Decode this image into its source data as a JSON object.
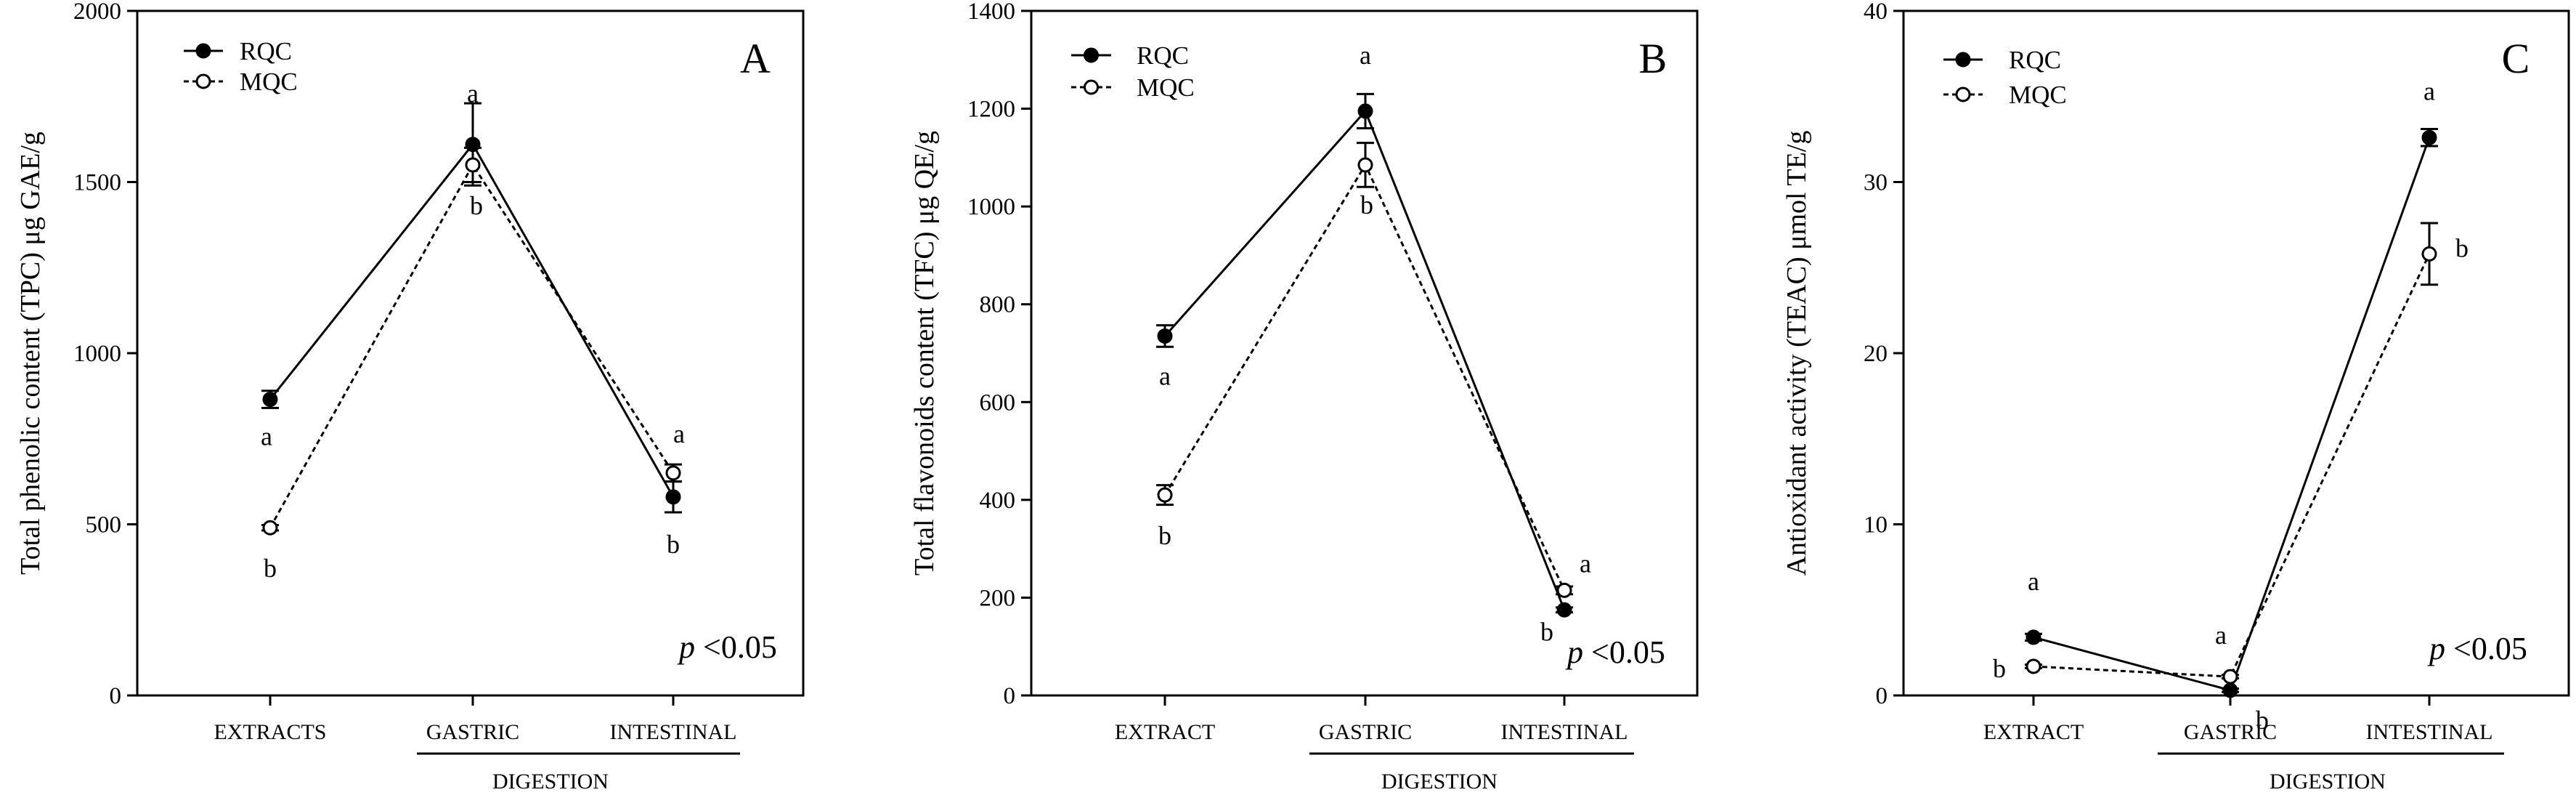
{
  "chart_data": [
    {
      "type": "line",
      "panel_label": "A",
      "ylabel": "Total phenolic content (TPC) μg GAE/g",
      "xlabel": "DIGESTION",
      "ylim": [
        0,
        2000
      ],
      "yticks": [
        0,
        500,
        1000,
        1500,
        2000
      ],
      "categories": [
        "EXTRACTS",
        "GASTRIC",
        "INTESTINAL"
      ],
      "annotation": {
        "italic": "p",
        "text": " <0.05"
      },
      "series": [
        {
          "name": "RQC",
          "marker": "filled",
          "values": [
            865,
            1610,
            580
          ],
          "errors": [
            25,
            120,
            45
          ],
          "letters": [
            "a",
            "a",
            "b"
          ]
        },
        {
          "name": "MQC",
          "marker": "open",
          "values": [
            490,
            1550,
            650
          ],
          "errors": [
            8,
            50,
            25
          ],
          "letters": [
            "b",
            "b",
            "a"
          ]
        }
      ]
    },
    {
      "type": "line",
      "panel_label": "B",
      "ylabel": "Total flavonoids content (TFC) μg QE/g",
      "xlabel": "DIGESTION",
      "ylim": [
        0,
        1400
      ],
      "yticks": [
        0,
        200,
        400,
        600,
        800,
        1000,
        1200,
        1400
      ],
      "categories": [
        "EXTRACT",
        "GASTRIC",
        "INTESTINAL"
      ],
      "annotation": {
        "italic": "p",
        "text": " <0.05"
      },
      "series": [
        {
          "name": "RQC",
          "marker": "filled",
          "values": [
            735,
            1195,
            175
          ],
          "errors": [
            22,
            35,
            5
          ],
          "letters": [
            "a",
            "a",
            "b"
          ]
        },
        {
          "name": "MQC",
          "marker": "open",
          "values": [
            410,
            1085,
            215
          ],
          "errors": [
            20,
            45,
            8
          ],
          "letters": [
            "b",
            "b",
            "a"
          ]
        }
      ]
    },
    {
      "type": "line",
      "panel_label": "C",
      "ylabel": "Antioxidant  activity  (TEAC) μmol TE/g",
      "xlabel": "DIGESTION",
      "ylim": [
        0,
        40
      ],
      "yticks": [
        0,
        10,
        20,
        30,
        40
      ],
      "categories": [
        "EXTRACT",
        "GASTRIC",
        "INTESTINAL"
      ],
      "annotation": {
        "italic": "p",
        "text": " <0.05"
      },
      "series": [
        {
          "name": "RQC",
          "marker": "filled",
          "values": [
            3.4,
            0.3,
            32.6
          ],
          "errors": [
            0.2,
            0.1,
            0.5
          ],
          "letters": [
            "a",
            "b",
            "a"
          ]
        },
        {
          "name": "MQC",
          "marker": "open",
          "values": [
            1.7,
            1.1,
            25.8
          ],
          "errors": [
            0.1,
            0.1,
            1.8
          ],
          "letters": [
            "b",
            "a",
            "b"
          ]
        }
      ]
    }
  ]
}
